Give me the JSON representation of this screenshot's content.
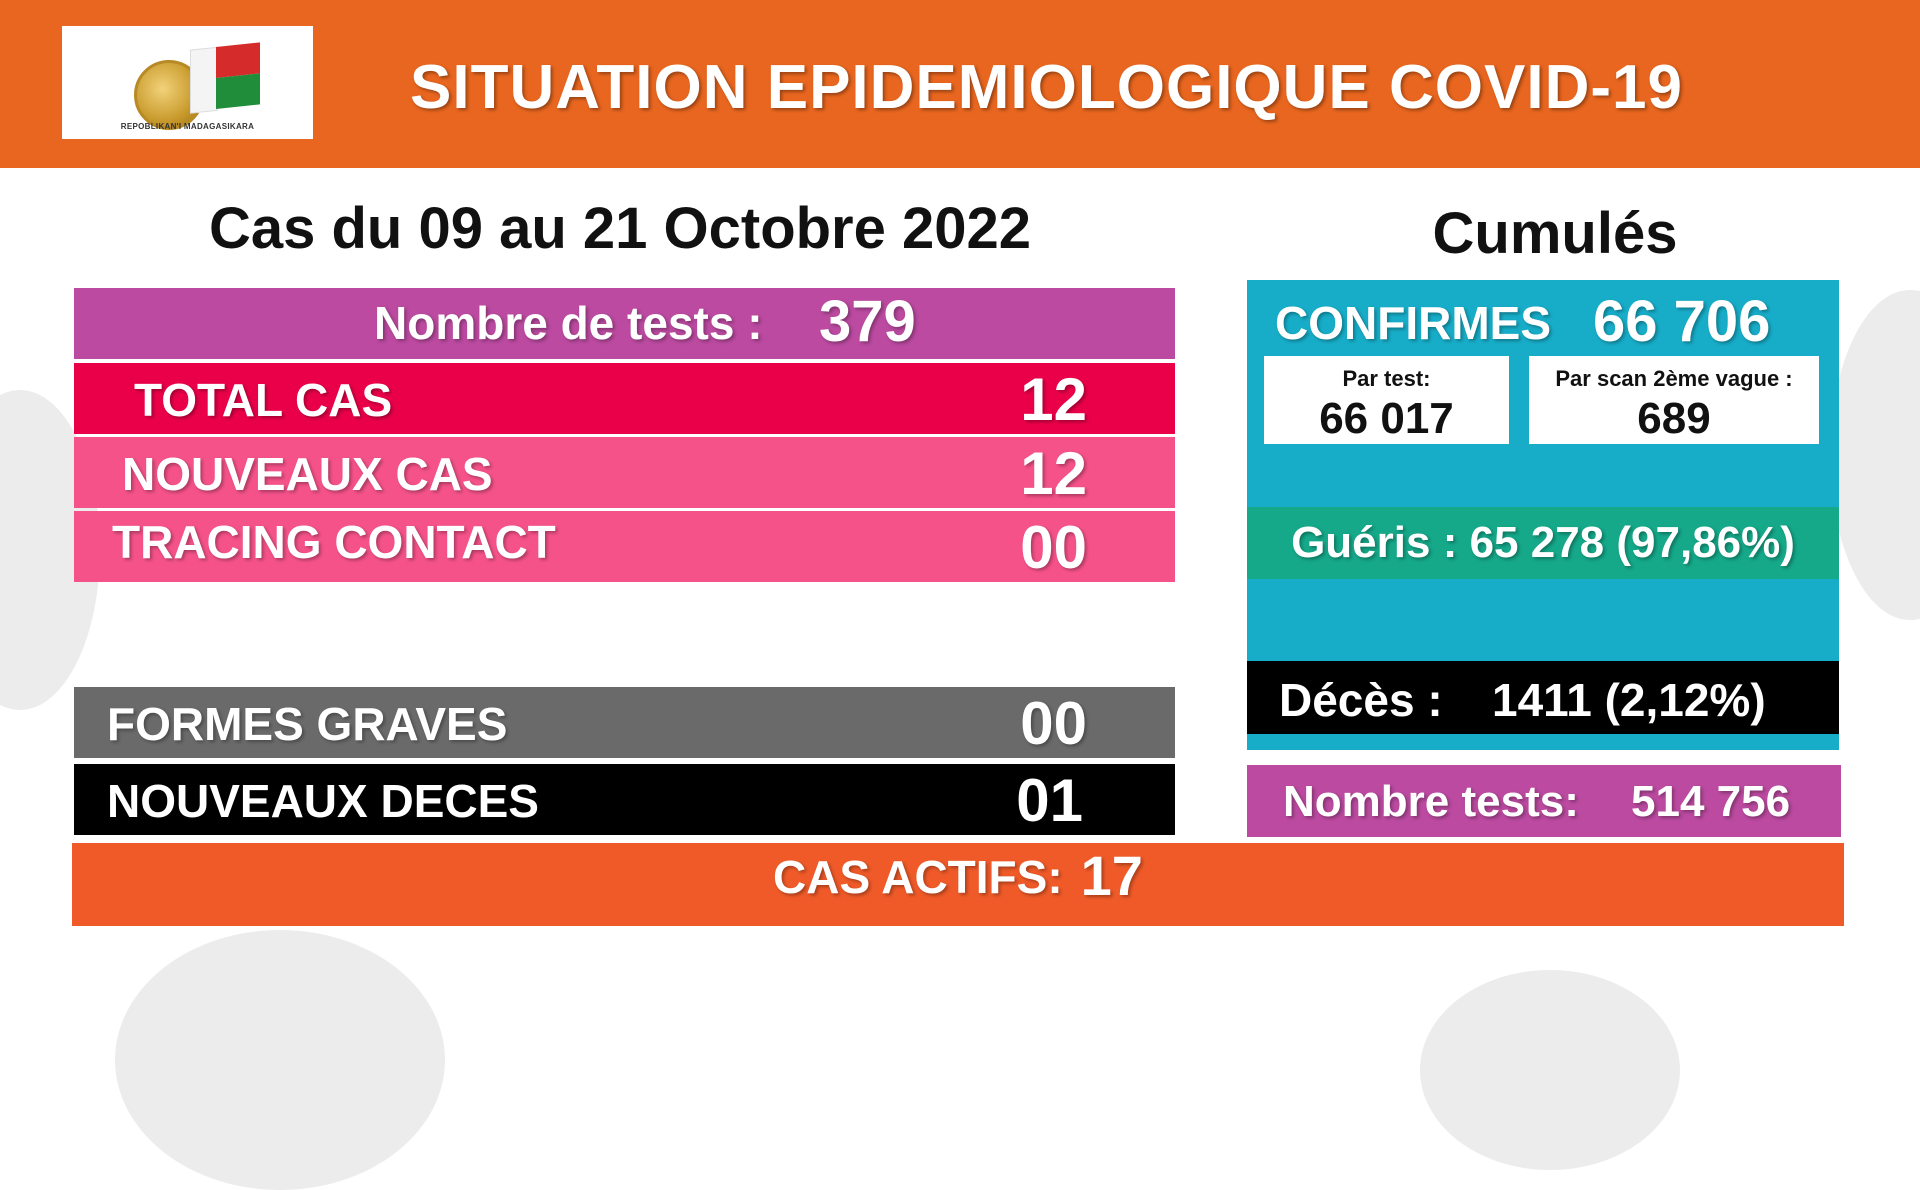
{
  "header": {
    "title": "SITUATION EPIDEMIOLOGIQUE COVID-19",
    "logo_text": "REPOBLIKAN'I MADAGASIKARA"
  },
  "period": {
    "title": "Cas du 09 au 21 Octobre 2022",
    "tests": {
      "label": "Nombre de tests :",
      "value": "379"
    },
    "total_cas": {
      "label": "TOTAL CAS",
      "value": "12"
    },
    "nouveaux_cas": {
      "label": "NOUVEAUX CAS",
      "value": "12"
    },
    "tracing_contact": {
      "label": "TRACING CONTACT",
      "value": "00"
    },
    "formes_graves": {
      "label": "FORMES GRAVES",
      "value": "00"
    },
    "nouveaux_deces": {
      "label": "NOUVEAUX DECES",
      "value": "01"
    },
    "cas_actifs": {
      "label": "CAS ACTIFS:",
      "value": "17"
    }
  },
  "cumul": {
    "title": "Cumulés",
    "confirmes": {
      "label": "CONFIRMES",
      "value": "66 706"
    },
    "par_test": {
      "label": "Par test:",
      "value": "66 017"
    },
    "par_scan": {
      "label": "Par scan 2ème vague :",
      "value": "689"
    },
    "gueris": {
      "text": "Guéris : 65 278 (97,86%)"
    },
    "deces": {
      "label": "Décès :",
      "value": "1411 (2,12%)"
    },
    "tests": {
      "label": "Nombre tests:",
      "value": "514 756"
    }
  },
  "colors": {
    "header": "#e8661f",
    "tests": "#bb4aa0",
    "total": "#ea0049",
    "pink": "#f5528a",
    "graves": "#6a6a6a",
    "deces": "#000000",
    "actifs": "#ef5a28",
    "confirmes": "#17adc8",
    "gueris": "#15a889"
  }
}
